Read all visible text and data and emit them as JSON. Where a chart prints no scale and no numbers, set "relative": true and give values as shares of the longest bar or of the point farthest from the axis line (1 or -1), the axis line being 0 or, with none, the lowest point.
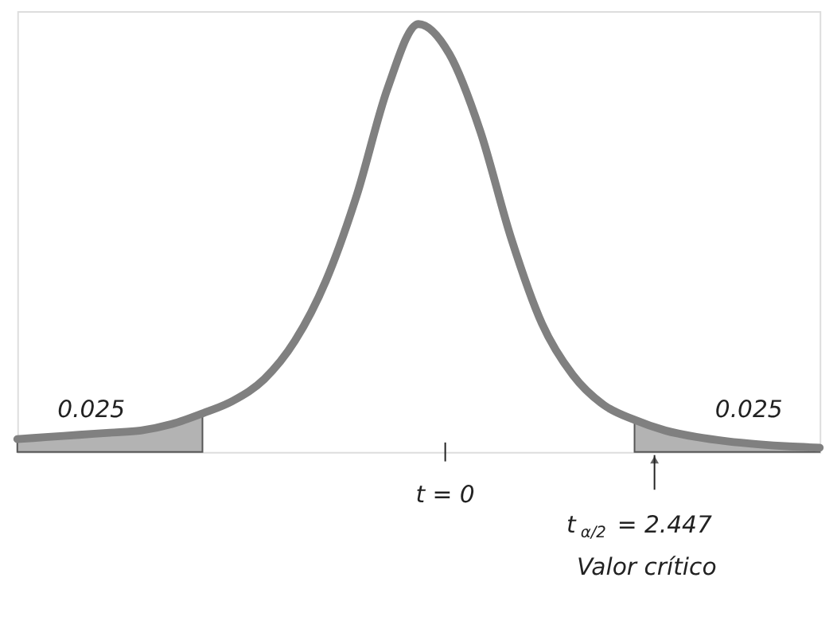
{
  "chart_data": {
    "type": "line",
    "relative": true,
    "categories": [
      null,
      null,
      null,
      null,
      null,
      null,
      null,
      null,
      null,
      null,
      null,
      null,
      null,
      null,
      null,
      null,
      null,
      null,
      null,
      null,
      null,
      null,
      null,
      null,
      null,
      null,
      null
    ],
    "marker": "none",
    "line_style": "solid",
    "series": [
      {
        "type": "area",
        "color": "#b3b3b3",
        "values": [
          0.03,
          0.035,
          0.04,
          0.045,
          0.05,
          0.065,
          0.09,
          null,
          null,
          null,
          null,
          null,
          null,
          null,
          null,
          null,
          null,
          null,
          null,
          null,
          null,
          null,
          null,
          null,
          null,
          null,
          null
        ]
      },
      {
        "type": "area",
        "color": "#b3b3b3",
        "values": [
          null,
          null,
          null,
          null,
          null,
          null,
          null,
          null,
          null,
          null,
          null,
          null,
          null,
          null,
          null,
          null,
          null,
          null,
          null,
          null,
          0.075,
          0.05,
          0.035,
          0.025,
          0.018,
          0.013,
          0.01
        ]
      },
      {
        "color": "#808080",
        "values": [
          0.03,
          0.035,
          0.04,
          0.045,
          0.05,
          0.065,
          0.09,
          0.12,
          0.17,
          0.26,
          0.4,
          0.6,
          0.85,
          1.0,
          0.93,
          0.75,
          0.5,
          0.3,
          0.18,
          0.11,
          0.075,
          0.05,
          0.035,
          0.025,
          0.018,
          0.013,
          0.01
        ]
      }
    ],
    "annotations": [
      "0.025",
      "0.025",
      "t = 0",
      "t$_{α/2}$ = 2.447",
      "Valor crítico"
    ]
  }
}
